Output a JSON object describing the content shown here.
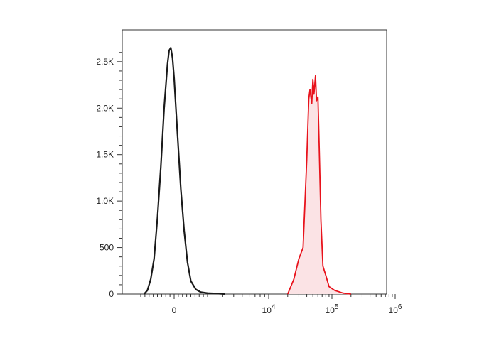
{
  "chart_data": {
    "type": "area",
    "title": "",
    "xlabel": "",
    "ylabel": "",
    "x_scale": "biexponential",
    "xlim": [
      -2000,
      1000000
    ],
    "ylim": [
      0,
      2800
    ],
    "grid": false,
    "legend": "none",
    "y_ticks": [
      {
        "value": 0,
        "label": "0"
      },
      {
        "value": 500,
        "label": "500"
      },
      {
        "value": 1000,
        "label": "1.0K"
      },
      {
        "value": 1500,
        "label": "1.5K"
      },
      {
        "value": 2000,
        "label": "2.0K"
      },
      {
        "value": 2500,
        "label": "2.5K"
      }
    ],
    "x_ticks": [
      {
        "value": 0,
        "label": "0",
        "exp": ""
      },
      {
        "value": 10000,
        "label": "10",
        "exp": "4"
      },
      {
        "value": 100000,
        "label": "10",
        "exp": "5"
      },
      {
        "value": 1000000,
        "label": "10",
        "exp": "6"
      }
    ],
    "series": [
      {
        "color": "#1a1a1a",
        "fill": "none",
        "x": [
          -1800,
          -1600,
          -1400,
          -1200,
          -1000,
          -800,
          -600,
          -400,
          -300,
          -200,
          -100,
          0,
          200,
          400,
          600,
          800,
          1000,
          1300,
          1600,
          2000,
          2600,
          3200
        ],
        "values": [
          0,
          40,
          160,
          380,
          820,
          1360,
          2000,
          2470,
          2620,
          2650,
          2540,
          2320,
          1720,
          1130,
          680,
          340,
          140,
          50,
          20,
          10,
          5,
          0
        ]
      },
      {
        "color": "#e8121b",
        "fill": "#fbe3e5",
        "x": [
          20000,
          25000,
          30000,
          35000,
          40000,
          43000,
          45000,
          48000,
          50000,
          52000,
          55000,
          57000,
          60000,
          63000,
          67000,
          72000,
          80000,
          90000,
          110000,
          150000,
          200000
        ],
        "values": [
          0,
          160,
          380,
          500,
          1450,
          2100,
          2200,
          2050,
          2310,
          2150,
          2350,
          2080,
          2120,
          1580,
          800,
          300,
          200,
          80,
          40,
          10,
          0
        ]
      }
    ]
  }
}
